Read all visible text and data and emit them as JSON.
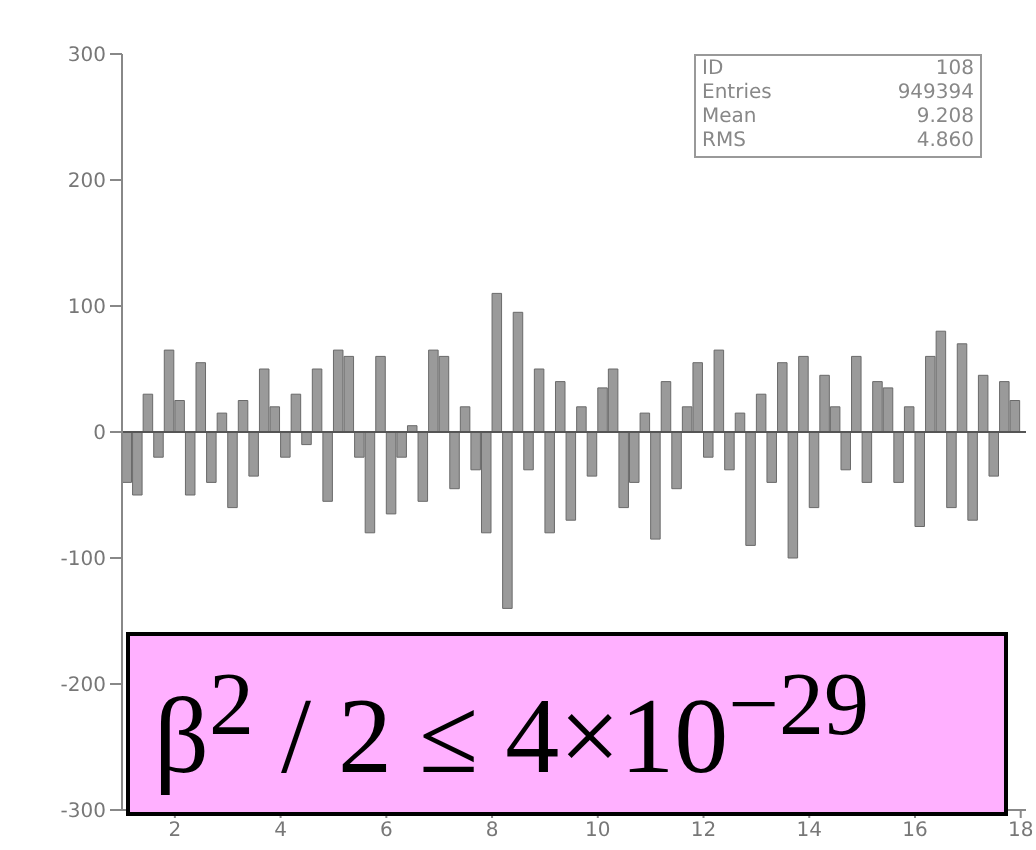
{
  "chart_data": {
    "type": "histogram",
    "bins": [
      1.0,
      1.2,
      1.4,
      1.6,
      1.8,
      2.0,
      2.2,
      2.4,
      2.6,
      2.8,
      3.0,
      3.2,
      3.4,
      3.6,
      3.8,
      4.0,
      4.2,
      4.4,
      4.6,
      4.8,
      5.0,
      5.2,
      5.4,
      5.6,
      5.8,
      6.0,
      6.2,
      6.4,
      6.6,
      6.8,
      7.0,
      7.2,
      7.4,
      7.6,
      7.8,
      8.0,
      8.2,
      8.4,
      8.6,
      8.8,
      9.0,
      9.2,
      9.4,
      9.6,
      9.8,
      10.0,
      10.2,
      10.4,
      10.6,
      10.8,
      11.0,
      11.2,
      11.4,
      11.6,
      11.8,
      12.0,
      12.2,
      12.4,
      12.6,
      12.8,
      13.0,
      13.2,
      13.4,
      13.6,
      13.8,
      14.0,
      14.2,
      14.4,
      14.6,
      14.8,
      15.0,
      15.2,
      15.4,
      15.6,
      15.8,
      16.0,
      16.2,
      16.4,
      16.6,
      16.8,
      17.0,
      17.2,
      17.4,
      17.6,
      17.8,
      18.0
    ],
    "values": [
      -40,
      -50,
      30,
      -20,
      65,
      25,
      -50,
      55,
      -40,
      15,
      -60,
      25,
      -35,
      50,
      20,
      -20,
      30,
      -10,
      50,
      -55,
      65,
      60,
      -20,
      -80,
      60,
      -65,
      -20,
      5,
      -55,
      65,
      60,
      -45,
      20,
      -30,
      -80,
      110,
      -140,
      95,
      -30,
      50,
      -80,
      40,
      -70,
      20,
      -35,
      35,
      50,
      -60,
      -40,
      15,
      -85,
      40,
      -45,
      20,
      55,
      -20,
      65,
      -30,
      15,
      -90,
      30,
      -40,
      55,
      -100,
      60,
      -60,
      45,
      20,
      -30,
      60,
      -40,
      40,
      35,
      -40,
      20,
      -75,
      60,
      80,
      -60,
      70,
      -70,
      45,
      -35,
      40,
      25
    ],
    "color": "#9a9a9a",
    "xlim": [
      1,
      18.1
    ],
    "xticks": [
      2,
      4,
      6,
      8,
      10,
      12,
      14,
      16,
      18
    ],
    "ylim": [
      -300,
      300
    ],
    "yticks": [
      -300,
      -200,
      -100,
      0,
      100,
      200,
      300
    ],
    "ref_lines": [
      {
        "axis": "y",
        "value": 0,
        "color": "#555555"
      }
    ],
    "annotations": [
      "ID",
      "108",
      "Entries",
      "949394",
      "Mean",
      "9.208",
      "RMS",
      "4.860",
      "β$^{2}$ / 2 ≤ 4×10$^{−29}$"
    ]
  }
}
